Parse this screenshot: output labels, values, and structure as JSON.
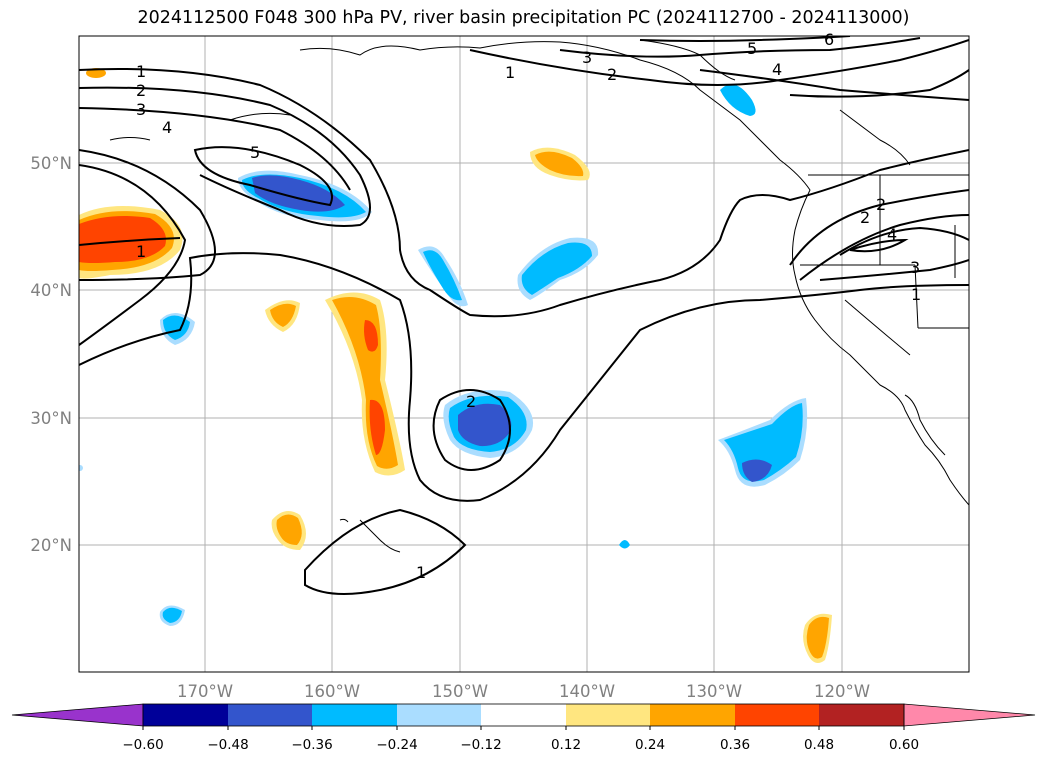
{
  "title": "2024112500 F048 300 hPa PV, river basin precipitation PC (2024112700 - 2024113000)",
  "map": {
    "lat_labels": [
      "50°N",
      "40°N",
      "30°N",
      "20°N"
    ],
    "lon_labels": [
      "170°W",
      "160°W",
      "150°W",
      "140°W",
      "130°W",
      "120°W"
    ],
    "contour_labels": [
      "1",
      "2",
      "3",
      "4",
      "5",
      "6",
      "1",
      "2",
      "3",
      "4",
      "5",
      "1",
      "1",
      "2",
      "2",
      "3",
      "4",
      "1",
      "2"
    ]
  },
  "colorbar": {
    "ticks": [
      "−0.60",
      "−0.48",
      "−0.36",
      "−0.24",
      "−0.12",
      "0.12",
      "0.24",
      "0.36",
      "0.48",
      "0.60"
    ],
    "colors": [
      "#9933cc",
      "#000099",
      "#3355cc",
      "#00bbff",
      "#aaddff",
      "#ffffff",
      "#ffe680",
      "#ffa500",
      "#ff4400",
      "#b22222",
      "#ff88aa"
    ]
  }
}
